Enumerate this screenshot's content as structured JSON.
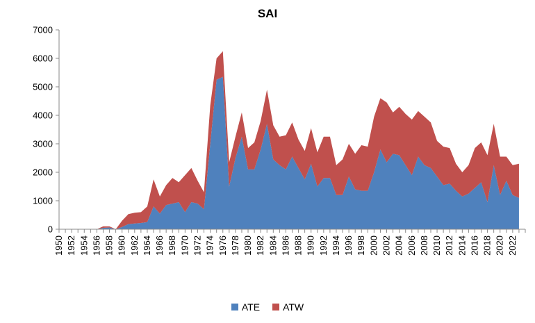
{
  "chart_data": {
    "type": "area",
    "stacked": true,
    "title": "SAI",
    "xlabel": "",
    "ylabel": "",
    "ylim": [
      0,
      7000
    ],
    "yticks": [
      0,
      1000,
      2000,
      3000,
      4000,
      5000,
      6000,
      7000
    ],
    "x": [
      1950,
      1951,
      1952,
      1953,
      1954,
      1955,
      1956,
      1957,
      1958,
      1959,
      1960,
      1961,
      1962,
      1963,
      1964,
      1965,
      1966,
      1967,
      1968,
      1969,
      1970,
      1971,
      1972,
      1973,
      1974,
      1975,
      1976,
      1977,
      1978,
      1979,
      1980,
      1981,
      1982,
      1983,
      1984,
      1985,
      1986,
      1987,
      1988,
      1989,
      1990,
      1991,
      1992,
      1993,
      1994,
      1995,
      1996,
      1997,
      1998,
      1999,
      2000,
      2001,
      2002,
      2003,
      2004,
      2005,
      2006,
      2007,
      2008,
      2009,
      2010,
      2011,
      2012,
      2013,
      2014,
      2015,
      2016,
      2017,
      2018,
      2019,
      2020,
      2021,
      2022,
      2023
    ],
    "xtick_labels": [
      "1950",
      "1952",
      "1954",
      "1956",
      "1958",
      "1960",
      "1962",
      "1964",
      "1966",
      "1968",
      "1970",
      "1972",
      "1974",
      "1976",
      "1978",
      "1980",
      "1982",
      "1984",
      "1986",
      "1988",
      "1990",
      "1992",
      "1994",
      "1996",
      "1998",
      "2000",
      "2002",
      "2004",
      "2006",
      "2008",
      "2010",
      "2012",
      "2014",
      "2016",
      "2018",
      "2020",
      "2022"
    ],
    "grid": false,
    "legend_position": "bottom",
    "series": [
      {
        "name": "ATE",
        "color": "#4f81bd",
        "values": [
          0,
          0,
          0,
          0,
          0,
          0,
          0,
          50,
          60,
          0,
          80,
          180,
          200,
          220,
          250,
          800,
          550,
          850,
          900,
          950,
          600,
          950,
          900,
          700,
          3000,
          5250,
          5350,
          1500,
          2500,
          3250,
          2100,
          2100,
          2800,
          3700,
          2450,
          2250,
          2100,
          2550,
          2150,
          1750,
          2300,
          1500,
          1800,
          1800,
          1200,
          1200,
          1850,
          1400,
          1350,
          1350,
          2000,
          2800,
          2350,
          2650,
          2600,
          2250,
          1900,
          2550,
          2250,
          2150,
          1850,
          1550,
          1600,
          1350,
          1150,
          1250,
          1450,
          1650,
          950,
          2250,
          1200,
          1700,
          1200,
          1100
        ]
      },
      {
        "name": "ATW",
        "color": "#c0504d",
        "values": [
          0,
          0,
          0,
          0,
          0,
          0,
          0,
          50,
          40,
          0,
          220,
          350,
          380,
          380,
          550,
          950,
          600,
          700,
          900,
          700,
          1300,
          1200,
          800,
          600,
          1350,
          750,
          900,
          850,
          750,
          850,
          750,
          950,
          1000,
          1200,
          1200,
          1000,
          1200,
          1200,
          1000,
          1000,
          1250,
          1200,
          1450,
          1450,
          1050,
          1250,
          1150,
          1250,
          1600,
          1550,
          1950,
          1800,
          2100,
          1450,
          1700,
          1800,
          1950,
          1600,
          1700,
          1600,
          1250,
          1350,
          1250,
          950,
          850,
          1000,
          1400,
          1400,
          1650,
          1450,
          1350,
          850,
          1050,
          1200
        ]
      }
    ]
  }
}
